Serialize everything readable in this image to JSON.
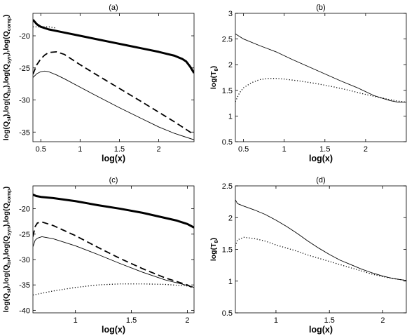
{
  "chart_data": [
    {
      "id": "a",
      "type": "line",
      "title": "(a)",
      "xlabel": "log(x)",
      "ylabel_parts": [
        "log(Q",
        "st",
        "),log(Q",
        "br",
        "),log(Q",
        "syn",
        "),log(Q",
        "comp",
        ")"
      ],
      "xlim": [
        0.4,
        2.45
      ],
      "ylim": [
        -36.5,
        -16.5
      ],
      "xticks": [
        0.5,
        1,
        1.5,
        2
      ],
      "yticks": [
        -35,
        -30,
        -25,
        -20
      ],
      "grid": false,
      "series": [
        {
          "style": "thick",
          "x": [
            0.4,
            0.45,
            0.5,
            0.6,
            0.8,
            1.0,
            1.2,
            1.4,
            1.6,
            1.8,
            2.0,
            2.1,
            2.2,
            2.3,
            2.35,
            2.4,
            2.45
          ],
          "y": [
            -17.5,
            -18.2,
            -18.6,
            -19.0,
            -19.5,
            -20.0,
            -20.5,
            -21.0,
            -21.5,
            -22.0,
            -22.5,
            -22.8,
            -23.1,
            -23.6,
            -24.0,
            -24.8,
            -25.8
          ]
        },
        {
          "style": "dotted",
          "x": [
            0.4,
            0.5,
            0.6,
            0.65,
            0.7
          ],
          "y": [
            -18.6,
            -18.6,
            -18.6,
            -18.7,
            -18.8
          ]
        },
        {
          "style": "dashed",
          "x": [
            0.4,
            0.45,
            0.5,
            0.55,
            0.6,
            0.7,
            0.8,
            1.0,
            1.2,
            1.5,
            1.8,
            2.0,
            2.2,
            2.4,
            2.45
          ],
          "y": [
            -26.0,
            -24.5,
            -23.6,
            -23.0,
            -22.6,
            -22.5,
            -22.9,
            -24.5,
            -26.0,
            -28.2,
            -30.4,
            -31.9,
            -33.4,
            -35.0,
            -35.4
          ]
        },
        {
          "style": "thin",
          "x": [
            0.4,
            0.45,
            0.5,
            0.55,
            0.6,
            0.7,
            0.8,
            1.0,
            1.2,
            1.5,
            1.8,
            2.0,
            2.2,
            2.45
          ],
          "y": [
            -26.5,
            -25.9,
            -25.6,
            -25.5,
            -25.6,
            -26.1,
            -26.7,
            -28.0,
            -29.3,
            -31.2,
            -33.0,
            -34.2,
            -35.2,
            -36.2
          ]
        }
      ]
    },
    {
      "id": "b",
      "type": "line",
      "title": "(b)",
      "xlabel": "log(x)",
      "ylabel_parts": [
        "log(T",
        "8",
        ")"
      ],
      "xlim": [
        0.4,
        2.5
      ],
      "ylim": [
        0.5,
        3.0
      ],
      "xticks": [
        0.5,
        1,
        1.5,
        2
      ],
      "yticks": [
        0.5,
        1,
        1.5,
        2,
        2.5,
        3
      ],
      "grid": false,
      "series": [
        {
          "style": "solid",
          "x": [
            0.4,
            0.5,
            0.7,
            0.9,
            1.1,
            1.3,
            1.5,
            1.7,
            1.9,
            2.1,
            2.2,
            2.3,
            2.4,
            2.5
          ],
          "y": [
            2.6,
            2.5,
            2.37,
            2.25,
            2.1,
            1.96,
            1.82,
            1.68,
            1.55,
            1.4,
            1.35,
            1.3,
            1.27,
            1.27
          ]
        },
        {
          "style": "dotted",
          "x": [
            0.4,
            0.45,
            0.5,
            0.6,
            0.7,
            0.8,
            0.9,
            1.0,
            1.2,
            1.4,
            1.6,
            1.8,
            2.0,
            2.2,
            2.4,
            2.5
          ],
          "y": [
            1.28,
            1.45,
            1.55,
            1.65,
            1.71,
            1.73,
            1.73,
            1.72,
            1.68,
            1.63,
            1.57,
            1.5,
            1.42,
            1.35,
            1.29,
            1.27
          ]
        }
      ]
    },
    {
      "id": "c",
      "type": "line",
      "title": "(c)",
      "xlabel": "log(x)",
      "ylabel_parts": [
        "log(Q",
        "st",
        "),log(Q",
        "br",
        "),log(Q",
        "syn",
        "),log(Q",
        "comp",
        ")"
      ],
      "xlim": [
        0.62,
        2.06
      ],
      "ylim": [
        -40.5,
        -15.5
      ],
      "xticks": [
        1,
        1.5,
        2
      ],
      "yticks": [
        -40,
        -35,
        -30,
        -25,
        -20
      ],
      "grid": false,
      "series": [
        {
          "style": "thick",
          "x": [
            0.62,
            0.65,
            0.7,
            0.8,
            1.0,
            1.2,
            1.4,
            1.6,
            1.8,
            1.9,
            2.0,
            2.06
          ],
          "y": [
            -17.2,
            -17.5,
            -17.7,
            -17.9,
            -18.5,
            -19.3,
            -20.0,
            -20.8,
            -21.8,
            -22.3,
            -23.0,
            -23.7
          ]
        },
        {
          "style": "dashed",
          "x": [
            0.62,
            0.64,
            0.66,
            0.7,
            0.8,
            1.0,
            1.2,
            1.4,
            1.6,
            1.8,
            2.0,
            2.06
          ],
          "y": [
            -25.5,
            -23.5,
            -22.8,
            -22.6,
            -23.3,
            -25.3,
            -27.6,
            -29.8,
            -31.8,
            -33.6,
            -35.0,
            -35.7
          ]
        },
        {
          "style": "thin",
          "x": [
            0.62,
            0.64,
            0.66,
            0.7,
            0.8,
            1.0,
            1.2,
            1.4,
            1.6,
            1.8,
            2.0,
            2.06
          ],
          "y": [
            -27.5,
            -26.2,
            -25.8,
            -25.5,
            -25.9,
            -27.3,
            -29.0,
            -30.8,
            -32.5,
            -34.0,
            -35.1,
            -35.5
          ]
        },
        {
          "style": "dotted",
          "x": [
            0.62,
            0.8,
            1.0,
            1.2,
            1.4,
            1.6,
            1.8,
            2.0,
            2.06
          ],
          "y": [
            -37.0,
            -36.2,
            -35.5,
            -35.0,
            -34.8,
            -34.8,
            -34.9,
            -35.2,
            -35.4
          ]
        }
      ]
    },
    {
      "id": "d",
      "type": "line",
      "title": "(d)",
      "xlabel": "log(x)",
      "ylabel_parts": [
        "log(T",
        "8",
        ")"
      ],
      "xlim": [
        0.62,
        2.22
      ],
      "ylim": [
        0.5,
        2.5
      ],
      "xticks": [
        1,
        1.5,
        2
      ],
      "yticks": [
        0.5,
        1,
        1.5,
        2,
        2.5
      ],
      "grid": false,
      "series": [
        {
          "style": "solid",
          "x": [
            0.62,
            0.64,
            0.7,
            0.8,
            0.9,
            1.0,
            1.1,
            1.2,
            1.3,
            1.4,
            1.5,
            1.6,
            1.7,
            1.8,
            1.9,
            2.0,
            2.1,
            2.22
          ],
          "y": [
            2.28,
            2.22,
            2.18,
            2.12,
            2.05,
            1.96,
            1.86,
            1.75,
            1.63,
            1.52,
            1.42,
            1.33,
            1.26,
            1.19,
            1.13,
            1.08,
            1.04,
            1.01
          ]
        },
        {
          "style": "dotted",
          "x": [
            0.62,
            0.64,
            0.7,
            0.8,
            0.9,
            1.0,
            1.1,
            1.2,
            1.3,
            1.4,
            1.5,
            1.6,
            1.7,
            1.8,
            1.9,
            2.0,
            2.1,
            2.22
          ],
          "y": [
            1.55,
            1.65,
            1.69,
            1.67,
            1.63,
            1.57,
            1.52,
            1.47,
            1.41,
            1.36,
            1.31,
            1.26,
            1.21,
            1.16,
            1.11,
            1.07,
            1.04,
            1.01
          ]
        }
      ]
    }
  ]
}
